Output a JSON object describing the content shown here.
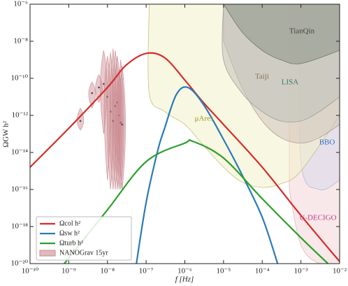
{
  "chart_data": {
    "type": "line",
    "xlog": true,
    "ylog": true,
    "xlabel": "f [Hz]",
    "ylabel": "ΩGW h²",
    "xlim": [
      1e-10,
      0.01
    ],
    "ylim": [
      1e-20,
      1e-06
    ],
    "xticks": [
      {
        "value": 1e-10,
        "label": "10⁻¹⁰"
      },
      {
        "value": 1e-09,
        "label": "10⁻⁹"
      },
      {
        "value": 1e-08,
        "label": "10⁻⁸"
      },
      {
        "value": 1e-07,
        "label": "10⁻⁷"
      },
      {
        "value": 1e-06,
        "label": "10⁻⁶"
      },
      {
        "value": 1e-05,
        "label": "10⁻⁵"
      },
      {
        "value": 0.0001,
        "label": "10⁻⁴"
      },
      {
        "value": 0.001,
        "label": "10⁻³"
      },
      {
        "value": 0.01,
        "label": "10⁻²"
      }
    ],
    "yticks": [
      {
        "value": 1e-20,
        "label": "10⁻²⁰"
      },
      {
        "value": 1e-18,
        "label": "10⁻¹⁸"
      },
      {
        "value": 1e-16,
        "label": "10⁻¹⁶"
      },
      {
        "value": 1e-14,
        "label": "10⁻¹⁴"
      },
      {
        "value": 1e-12,
        "label": "10⁻¹²"
      },
      {
        "value": 1e-10,
        "label": "10⁻¹⁰"
      },
      {
        "value": 1e-08,
        "label": "10⁻⁸"
      },
      {
        "value": 1e-06,
        "label": "10⁻⁶"
      }
    ],
    "legend": "lower left",
    "series": [
      {
        "name": "Ωcol h²",
        "color": "#d62c2c",
        "x": [
          1e-10,
          1e-09,
          1e-08,
          3e-08,
          1e-07,
          3e-07,
          1e-06,
          3e-06,
          1e-05,
          0.0001,
          0.001,
          0.01
        ],
        "values": [
          1.6e-15,
          2e-13,
          3.2e-11,
          5e-10,
          2.2e-09,
          1.3e-09,
          8e-11,
          5e-12,
          3.2e-13,
          1.6e-15,
          4e-18,
          1.3e-20
        ]
      },
      {
        "name": "Ωsw h²",
        "color": "#2a7ab8",
        "x": [
          5.6e-08,
          1e-07,
          2e-07,
          3e-07,
          6e-07,
          1.2e-06,
          3e-06,
          1e-05,
          3e-05,
          0.0001,
          0.00025
        ],
        "values": [
          1e-20,
          2e-17,
          1.3e-14,
          2e-13,
          1.3e-11,
          3.2e-11,
          4e-12,
          5e-14,
          6.3e-16,
          3.2e-18,
          1e-20
        ]
      },
      {
        "name": "Ωturb h²",
        "color": "#2ca02c",
        "x": [
          7.7e-10,
          1e-09,
          1e-08,
          1e-07,
          1e-06,
          1.6e-06,
          1e-05,
          0.0001,
          0.001,
          0.005
        ],
        "values": [
          1e-20,
          2e-20,
          8e-18,
          3.2e-15,
          3.2e-14,
          4e-14,
          5e-15,
          3.2e-17,
          2.5e-19,
          1e-20
        ]
      }
    ],
    "nanograv": {
      "name": "NANOGrav 15yr",
      "color": "#c98a90",
      "x": [
        2e-09,
        4e-09,
        6e-09,
        8e-09,
        1e-08,
        1.2e-08,
        1.4e-08,
        1.6e-08,
        1.8e-08,
        2e-08,
        2.2e-08,
        2.4e-08
      ],
      "values": [
        5e-13,
        1.6e-11,
        3.2e-11,
        5e-11,
        1e-11,
        1.6e-12,
        5e-13,
        3.2e-12,
        5e-12,
        1e-12,
        4e-13,
        3.2e-13
      ],
      "lower": [
        1.6e-13,
        2.5e-12,
        5e-12,
        1e-13,
        3.2e-16,
        1e-16,
        1e-16,
        1e-16,
        1e-16,
        1e-16,
        1e-16,
        1e-16
      ],
      "upper": [
        2.5e-12,
        6.3e-11,
        1.6e-10,
        3.2e-09,
        1.6e-09,
        2.5e-09,
        4e-09,
        3.2e-09,
        1.6e-09,
        3.2e-10,
        1e-09,
        5e-10
      ]
    },
    "regions": [
      {
        "name": "U-DECIGO",
        "color": "#f3d6d8",
        "edge": "#e0b8bc",
        "label_color": "#c04080",
        "x": [
          0.0005,
          0.001,
          0.003,
          0.01
        ],
        "values": [
          1e-16,
          1e-19,
          1e-20,
          1e-20
        ]
      },
      {
        "name": "BBO",
        "color": "#d8d8ea",
        "edge": "#b8b8d0",
        "label_color": "#3070c0",
        "x": [
          0.001,
          0.001,
          0.003,
          0.01
        ],
        "values": [
          1e-06,
          3.2e-15,
          1e-16,
          3.2e-16
        ]
      },
      {
        "name": "μAres",
        "color": "#f3f0c8",
        "edge": "#c8c080",
        "label_color": "#9a9a30",
        "x": [
          1.2e-07,
          1.2e-07,
          3e-07,
          1e-06,
          3e-06,
          1e-05,
          3e-05,
          0.0001,
          0.0003,
          0.001,
          0.01
        ],
        "values": [
          1e-06,
          1.6e-11,
          1.6e-12,
          3.2e-13,
          2.5e-14,
          1.6e-15,
          2.5e-16,
          1.3e-16,
          2e-16,
          1e-15,
          1e-12
        ]
      },
      {
        "name": "Taiji",
        "color": "#cfc2bc",
        "edge": "#b0a098",
        "label_color": "#8a6a50",
        "x": [
          1e-05,
          3e-05,
          0.0001,
          0.0003,
          0.001,
          0.003,
          0.01
        ],
        "values": [
          1e-08,
          3.2e-11,
          5e-13,
          6.3e-14,
          3.2e-14,
          6.3e-14,
          3.2e-13
        ]
      },
      {
        "name": "LISA",
        "color": "#bfc2bc",
        "edge": "#9aa098",
        "label_color": "#3a7a70",
        "x": [
          1e-05,
          1e-05,
          3e-05,
          0.0001,
          0.0003,
          0.001,
          0.003,
          0.01
        ],
        "values": [
          1e-06,
          1e-09,
          1.6e-11,
          1.6e-12,
          5e-13,
          5e-13,
          1.6e-12,
          1e-11
        ]
      },
      {
        "name": "TianQin",
        "color": "#8d9486",
        "edge": "#707868",
        "label_color": "#444",
        "x": [
          1e-05,
          3e-05,
          0.0001,
          0.0003,
          0.001,
          0.01
        ],
        "values": [
          1e-06,
          3.2e-08,
          3.2e-09,
          1e-09,
          6.3e-10,
          3.2e-09
        ]
      }
    ]
  }
}
